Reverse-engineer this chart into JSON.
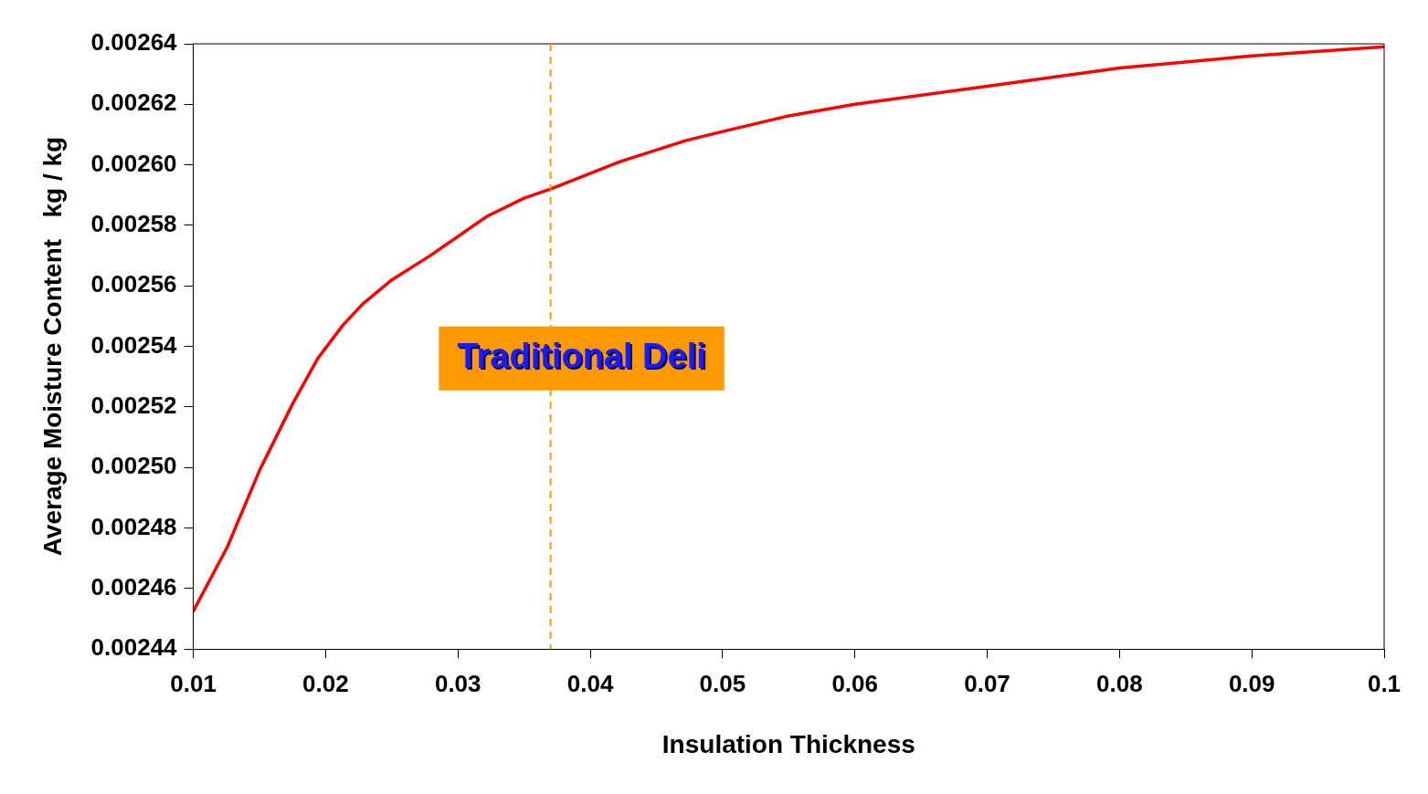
{
  "chart_data": {
    "type": "line",
    "xlabel": "Insulation Thickness",
    "ylabel": "Average Moisture Content   kg / kg",
    "x": [
      0.01,
      0.0126,
      0.015,
      0.0175,
      0.0194,
      0.0213,
      0.0228,
      0.025,
      0.0279,
      0.0322,
      0.035,
      0.037,
      0.0422,
      0.0472,
      0.05,
      0.0548,
      0.06,
      0.07,
      0.08,
      0.09,
      0.1
    ],
    "series": [
      {
        "color": "#ff0000",
        "values": [
          0.0024525,
          0.002474,
          0.002499,
          0.002521,
          0.002536,
          0.002547,
          0.002554,
          0.002562,
          0.00257,
          0.002583,
          0.002589,
          0.002592,
          0.002601,
          0.002608,
          0.002611,
          0.002616,
          0.00262,
          0.002626,
          0.002632,
          0.002636,
          0.002639
        ]
      }
    ],
    "xlim": [
      0.01,
      0.1
    ],
    "xticks": [
      0.01,
      0.02,
      0.03,
      0.04,
      0.05,
      0.06,
      0.07,
      0.08,
      0.09,
      0.1
    ],
    "ylim": [
      0.00244,
      0.00264
    ],
    "yticks": [
      {
        "value": 0.00244,
        "label": "0.00244"
      },
      {
        "value": 0.00246,
        "label": "0.00246"
      },
      {
        "value": 0.00248,
        "label": "0.00248"
      },
      {
        "value": 0.0025,
        "label": "0.00250"
      },
      {
        "value": 0.00252,
        "label": "0.00252"
      },
      {
        "value": 0.00254,
        "label": "0.00254"
      },
      {
        "value": 0.00256,
        "label": "0.00256"
      },
      {
        "value": 0.00258,
        "label": "0.00258"
      },
      {
        "value": 0.0026,
        "label": "0.00260"
      },
      {
        "value": 0.00262,
        "label": "0.00262"
      },
      {
        "value": 0.00264,
        "label": "0.00264"
      }
    ],
    "ref_lines": [
      {
        "axis": "x",
        "value": 0.037,
        "label": "Traditional Deli",
        "color": "#ff9900",
        "line_style": "dashed"
      }
    ],
    "grid": false,
    "legend": false,
    "marker": "none",
    "line_style": "solid"
  }
}
